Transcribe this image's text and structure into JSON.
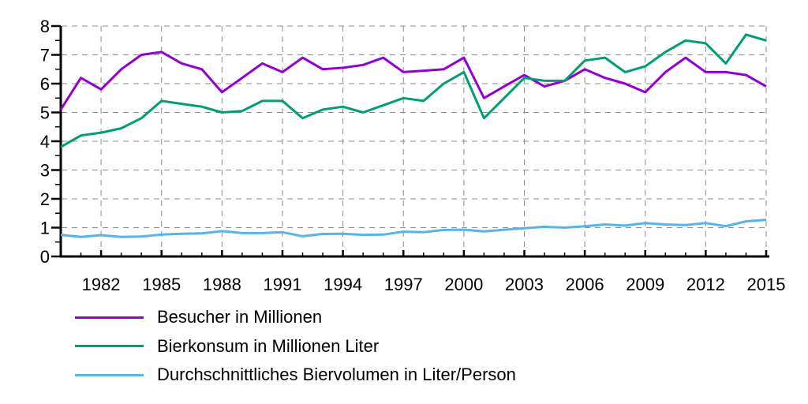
{
  "page": {
    "background": "#ffffff"
  },
  "chart_data": {
    "type": "line",
    "title": "",
    "xlabel": "",
    "ylabel": "",
    "xlim": [
      1980,
      2015
    ],
    "ylim": [
      0,
      8
    ],
    "grid": "dashed",
    "grid_color": "#8c8c8c",
    "axis_color": "#000000",
    "legend_position": "bottom-left",
    "yticks": [
      0,
      1,
      2,
      3,
      4,
      5,
      6,
      7,
      8
    ],
    "xticks": [
      1982,
      1985,
      1988,
      1991,
      1994,
      1997,
      2000,
      2003,
      2006,
      2009,
      2012,
      2015
    ],
    "x": [
      1980,
      1981,
      1982,
      1983,
      1984,
      1985,
      1986,
      1987,
      1988,
      1989,
      1990,
      1991,
      1992,
      1993,
      1994,
      1995,
      1996,
      1997,
      1998,
      1999,
      2000,
      2001,
      2002,
      2003,
      2004,
      2005,
      2006,
      2007,
      2008,
      2009,
      2010,
      2011,
      2012,
      2013,
      2014,
      2015
    ],
    "series": [
      {
        "name": "Besucher in Millionen",
        "color": "#9400D3",
        "values": [
          5.1,
          6.2,
          5.8,
          6.5,
          7.0,
          7.1,
          6.7,
          6.5,
          5.7,
          6.2,
          6.7,
          6.4,
          6.9,
          6.5,
          6.55,
          6.65,
          6.9,
          6.4,
          6.45,
          6.5,
          6.9,
          5.5,
          5.9,
          6.3,
          5.9,
          6.1,
          6.5,
          6.2,
          6.0,
          5.7,
          6.4,
          6.9,
          6.4,
          6.4,
          6.3,
          5.9
        ]
      },
      {
        "name": "Bierkonsum in Millionen Liter",
        "color": "#009E73",
        "values": [
          3.8,
          4.2,
          4.3,
          4.45,
          4.8,
          5.4,
          5.3,
          5.2,
          5.0,
          5.05,
          5.4,
          5.4,
          4.8,
          5.1,
          5.2,
          5.0,
          5.25,
          5.5,
          5.4,
          6.0,
          6.4,
          4.8,
          5.5,
          6.2,
          6.1,
          6.1,
          6.8,
          6.9,
          6.4,
          6.6,
          7.1,
          7.5,
          7.4,
          6.7,
          7.7,
          7.5
        ]
      },
      {
        "name": "Durchschnittliches Biervolumen in Liter/Person",
        "color": "#56B4E9",
        "values": [
          0.75,
          0.68,
          0.74,
          0.68,
          0.69,
          0.76,
          0.79,
          0.8,
          0.88,
          0.81,
          0.81,
          0.84,
          0.7,
          0.78,
          0.79,
          0.75,
          0.76,
          0.86,
          0.84,
          0.92,
          0.93,
          0.87,
          0.93,
          0.98,
          1.03,
          1.0,
          1.05,
          1.11,
          1.07,
          1.16,
          1.11,
          1.09,
          1.16,
          1.05,
          1.22,
          1.27
        ]
      }
    ]
  }
}
